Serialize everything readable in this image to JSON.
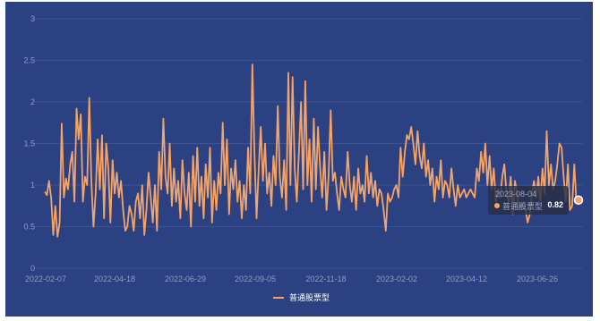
{
  "chart_data": {
    "type": "line",
    "legend_position": "bottom-center",
    "grid": true,
    "ylim": [
      0,
      3
    ],
    "y_ticks": [
      "0",
      "0.5",
      "1",
      "1.5",
      "2",
      "2.5",
      "3"
    ],
    "x_tick_labels": [
      "2022-02-07",
      "2022-04-18",
      "2022-06-29",
      "2022-09-05",
      "2022-11-18",
      "2023-02-02",
      "2023-04-12",
      "2023-06-26"
    ],
    "x_range": [
      "2022-02-07",
      "2023-08-04"
    ],
    "series": [
      {
        "name": "普通股票型",
        "color": "#f5a468",
        "values": [
          0.92,
          0.88,
          1.05,
          0.85,
          0.4,
          0.75,
          0.38,
          0.55,
          1.74,
          0.85,
          1.08,
          0.95,
          1.25,
          1.4,
          0.8,
          1.92,
          1.55,
          1.85,
          0.8,
          1.1,
          1.0,
          2.05,
          1.05,
          0.5,
          0.9,
          1.55,
          0.95,
          1.6,
          0.6,
          1.5,
          1.2,
          0.55,
          1.3,
          0.9,
          1.15,
          0.85,
          1.05,
          0.7,
          0.45,
          0.5,
          0.75,
          0.65,
          0.45,
          0.8,
          0.9,
          0.6,
          1.0,
          0.4,
          0.7,
          1.15,
          0.85,
          0.55,
          1.0,
          0.45,
          1.4,
          0.95,
          1.8,
          1.1,
          0.9,
          1.5,
          0.75,
          1.2,
          0.8,
          1.05,
          0.6,
          1.3,
          0.9,
          0.7,
          1.15,
          0.5,
          1.35,
          0.8,
          1.45,
          0.75,
          1.1,
          0.6,
          1.25,
          0.85,
          1.45,
          0.55,
          1.05,
          0.7,
          1.15,
          0.9,
          1.75,
          1.0,
          1.55,
          0.65,
          1.2,
          0.95,
          1.3,
          0.8,
          1.05,
          0.6,
          1.0,
          0.7,
          1.45,
          0.9,
          2.45,
          1.4,
          0.6,
          1.2,
          1.7,
          1.05,
          1.5,
          0.9,
          1.15,
          0.75,
          1.35,
          1.0,
          1.95,
          1.1,
          0.85,
          1.3,
          0.7,
          2.35,
          1.0,
          2.3,
          1.2,
          0.8,
          1.4,
          2.0,
          0.95,
          2.25,
          1.0,
          1.55,
          0.8,
          1.8,
          0.95,
          1.7,
          1.2,
          0.85,
          1.4,
          0.7,
          1.1,
          1.9,
          1.05,
          1.15,
          0.9,
          0.7,
          1.1,
          0.95,
          0.85,
          1.4,
          1.0,
          0.8,
          1.1,
          0.7,
          1.2,
          0.9,
          1.0,
          0.8,
          1.35,
          0.9,
          1.15,
          0.85,
          1.05,
          0.75,
          0.95,
          0.9,
          0.7,
          0.45,
          0.9,
          0.8,
          0.85,
          0.95,
          1.0,
          0.85,
          1.45,
          1.1,
          1.4,
          1.6,
          1.55,
          1.7,
          1.5,
          1.25,
          1.65,
          1.35,
          1.2,
          1.5,
          1.1,
          1.3,
          1.0,
          1.2,
          0.8,
          1.1,
          0.95,
          1.3,
          0.85,
          1.05,
          1.0,
          0.85,
          1.2,
          0.95,
          0.75,
          1.0,
          0.85,
          0.9,
          0.95,
          0.85,
          0.9,
          0.95,
          0.9,
          0.85,
          1.2,
          1.05,
          1.4,
          1.15,
          1.5,
          1.0,
          1.35,
          0.95,
          1.2,
          0.8,
          0.95,
          0.85,
          1.1,
          1.25,
          0.9,
          0.8,
          1.1,
          0.65,
          1.05,
          0.9,
          0.7,
          0.75,
          0.8,
          0.7,
          0.55,
          0.65,
          0.9,
          1.05,
          0.85,
          1.1,
          0.8,
          1.2,
          0.9,
          1.65,
          1.0,
          1.25,
          0.95,
          1.05,
          1.25,
          1.5,
          1.45,
          1.1,
          0.8,
          1.25,
          0.7,
          0.75,
          1.25,
          0.8,
          0.82
        ]
      }
    ]
  },
  "tooltip": {
    "date": "2023-08-04",
    "series_name": "普通股票型",
    "value": "0.82"
  }
}
